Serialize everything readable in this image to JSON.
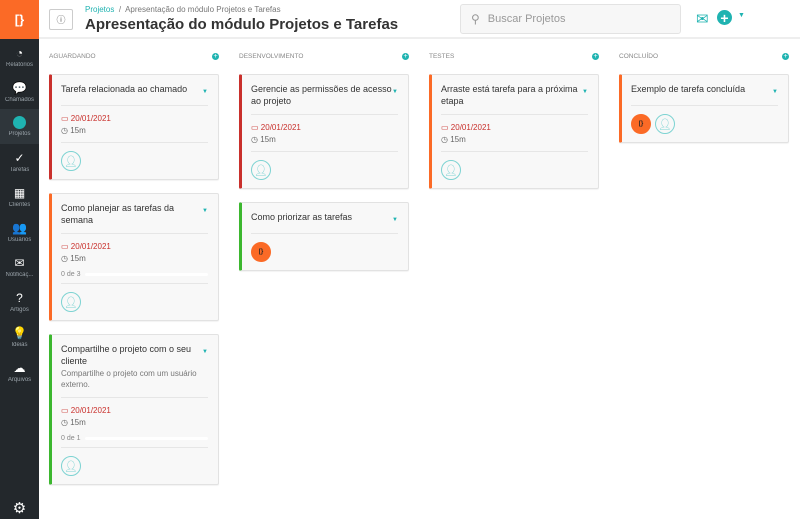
{
  "app": {
    "logo": "[}"
  },
  "sidebar": {
    "items": [
      {
        "label": "Relatórios",
        "icon": "pie-chart-icon",
        "glyph": "◔"
      },
      {
        "label": "Chamados",
        "icon": "chat-icon",
        "glyph": "💬"
      },
      {
        "label": "Projetos",
        "icon": "clock-icon",
        "glyph": "",
        "active": true
      },
      {
        "label": "Tarefas",
        "icon": "check-icon",
        "glyph": "✓"
      },
      {
        "label": "Clientes",
        "icon": "building-icon",
        "glyph": "▦"
      },
      {
        "label": "Usuários",
        "icon": "users-icon",
        "glyph": "👥"
      },
      {
        "label": "Notificaç...",
        "icon": "envelope-icon",
        "glyph": "✉"
      },
      {
        "label": "Artigos",
        "icon": "question-icon",
        "glyph": "?"
      },
      {
        "label": "Ideias",
        "icon": "lightbulb-icon",
        "glyph": "💡"
      },
      {
        "label": "Arquivos",
        "icon": "cloud-icon",
        "glyph": "☁"
      }
    ],
    "settings_glyph": "⚙"
  },
  "header": {
    "breadcrumb_root": "Projetos",
    "breadcrumb_sep": "/",
    "breadcrumb_current": "Apresentação do módulo Projetos e Tarefas",
    "title": "Apresentação do módulo Projetos e Tarefas",
    "search_placeholder": "Buscar Projetos"
  },
  "colors": {
    "accent": "#1fb3b1",
    "brand": "#fb6a26",
    "red": "#c9302c",
    "green": "#3cb72f"
  },
  "columns": [
    {
      "name": "AGUARDANDO",
      "cards": [
        {
          "title": "Tarefa relacionada ao chamado",
          "color": "#c9302c",
          "date": "20/01/2021",
          "time": "15m",
          "avatars": [
            "user"
          ]
        },
        {
          "title": "Como planejar as tarefas da semana",
          "color": "#fb6a26",
          "date": "20/01/2021",
          "time": "15m",
          "progress": "0 de 3",
          "avatars": [
            "user"
          ]
        },
        {
          "title": "Compartilhe o projeto com o seu cliente",
          "description": "Compartilhe o projeto com um usuário externo.",
          "color": "#3cb72f",
          "date": "20/01/2021",
          "time": "15m",
          "progress": "0 de 1",
          "avatars": [
            "user"
          ]
        }
      ]
    },
    {
      "name": "DESENVOLVIMENTO",
      "cards": [
        {
          "title": "Gerencie as permissões de acesso ao projeto",
          "color": "#c9302c",
          "date": "20/01/2021",
          "time": "15m",
          "avatars": [
            "user"
          ]
        },
        {
          "title": "Como priorizar as tarefas",
          "color": "#3cb72f",
          "avatars": [
            "logo"
          ]
        }
      ]
    },
    {
      "name": "TESTES",
      "cards": [
        {
          "title": "Arraste está tarefa para a próxima etapa",
          "color": "#fb6a26",
          "date": "20/01/2021",
          "time": "15m",
          "avatars": [
            "user"
          ]
        }
      ]
    },
    {
      "name": "CONCLUÍDO",
      "cards": [
        {
          "title": "Exemplo de tarefa concluída",
          "color": "#fb6a26",
          "avatars": [
            "logo",
            "user"
          ]
        }
      ]
    }
  ]
}
